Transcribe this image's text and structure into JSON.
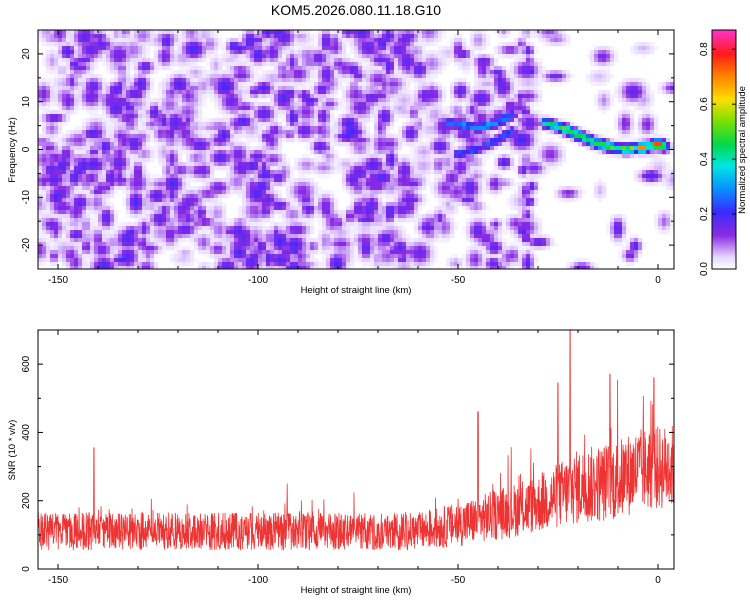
{
  "chart_data": [
    {
      "type": "heatmap",
      "title": "KOM5.2026.080.11.18.G10",
      "xlabel": "Height of straight line (km)",
      "ylabel": "Frequency (Hz)",
      "xlim": [
        -155,
        4
      ],
      "ylim": [
        -25,
        25
      ],
      "xticks": [
        -150,
        -100,
        -50,
        0
      ],
      "xtick_labels": [
        "-150",
        "-100",
        "-50",
        "0"
      ],
      "yticks": [
        -20,
        -10,
        0,
        10,
        20
      ],
      "ytick_labels": [
        "-20",
        "-10",
        "0",
        "10",
        "20"
      ],
      "colorbar": {
        "label": "Normalized spectral amplitude",
        "range": [
          0,
          0.87
        ],
        "ticks": [
          0.0,
          0.2,
          0.4,
          0.6,
          0.8
        ],
        "tick_labels": [
          "0.0",
          "0.2",
          "0.4",
          "0.6",
          "0.8"
        ],
        "colormap": "white-purple-blue-cyan-green-yellow-red-magenta"
      },
      "features": [
        {
          "name": "upper-branch",
          "points": [
            [
              -52,
              5.5
            ],
            [
              -45,
              4.5
            ],
            [
              -40,
              5.5
            ],
            [
              -36,
              7.5
            ]
          ],
          "amplitude": 0.28
        },
        {
          "name": "lower-branch",
          "points": [
            [
              -50,
              -1
            ],
            [
              -45,
              0
            ],
            [
              -40,
              2
            ],
            [
              -36,
              4
            ]
          ],
          "amplitude": 0.22
        },
        {
          "name": "main-trace",
          "points": [
            [
              -28,
              5.5
            ],
            [
              -24,
              4.5
            ],
            [
              -20,
              3
            ],
            [
              -16,
              1.5
            ],
            [
              -12,
              0.5
            ],
            [
              -8,
              0
            ],
            [
              -4,
              0.5
            ],
            [
              0,
              1
            ],
            [
              2,
              0.5
            ]
          ],
          "amplitude": 0.45
        },
        {
          "name": "peak-1",
          "points": [
            [
              -4,
              0.3
            ]
          ],
          "amplitude": 0.75
        },
        {
          "name": "peak-2",
          "points": [
            [
              0,
              1
            ]
          ],
          "amplitude": 0.82
        }
      ],
      "noise_level": 0.12
    },
    {
      "type": "line",
      "xlabel": "Height of straight line (km)",
      "ylabel": "SNR (10 * v/v)",
      "xlim": [
        -155,
        4
      ],
      "ylim": [
        0,
        700
      ],
      "xticks": [
        -150,
        -100,
        -50,
        0
      ],
      "xtick_labels": [
        "-150",
        "-100",
        "-50",
        "0"
      ],
      "yticks": [
        0,
        200,
        400,
        600
      ],
      "ytick_labels": [
        "0",
        "200",
        "400",
        "600"
      ],
      "series": [
        {
          "name": "SNR",
          "color": "#ee3333",
          "baseline": [
            [
              -155,
              110
            ],
            [
              -60,
              110
            ],
            [
              -50,
              130
            ],
            [
              -40,
              160
            ],
            [
              -30,
              190
            ],
            [
              -20,
              240
            ],
            [
              -10,
              260
            ],
            [
              -5,
              290
            ],
            [
              4,
              300
            ]
          ],
          "spread": [
            [
              -155,
              55
            ],
            [
              -60,
              55
            ],
            [
              -50,
              65
            ],
            [
              -40,
              75
            ],
            [
              -30,
              85
            ],
            [
              -20,
              110
            ],
            [
              -10,
              120
            ],
            [
              4,
              125
            ]
          ],
          "spikes": [
            [
              -141,
              355
            ],
            [
              -45,
              460
            ],
            [
              -25,
              545
            ],
            [
              -22,
              700
            ],
            [
              -12,
              570
            ],
            [
              -1,
              560
            ]
          ]
        }
      ]
    }
  ]
}
